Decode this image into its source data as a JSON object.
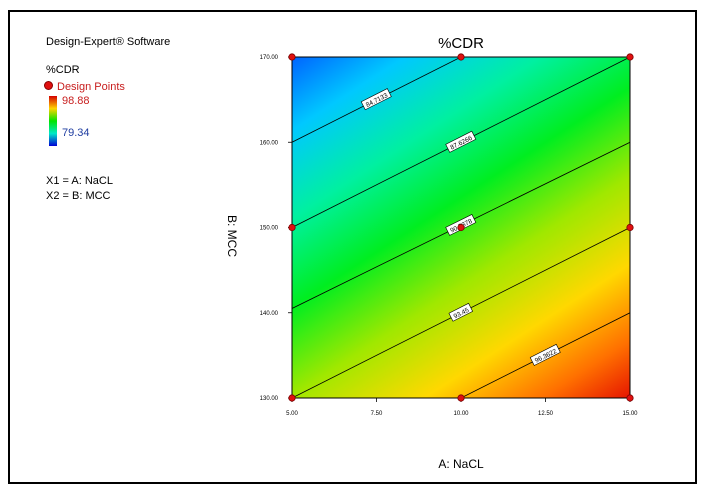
{
  "legend": {
    "software": "Design-Expert® Software",
    "response": "%CDR",
    "design_points_label": "Design Points",
    "high_value": "98.88",
    "low_value": "79.34",
    "factor1": "X1 = A: NaCL",
    "factor2": "X2 = B: MCC"
  },
  "colors": {
    "design_point": "#e01010",
    "high": "#d40000",
    "mid": "#00e400",
    "low": "#0000d4",
    "contour_line": "#000000"
  },
  "chart_data": {
    "type": "contour",
    "title": "%CDR",
    "xlabel": "A: NaCL",
    "ylabel": "B: MCC",
    "xlim": [
      5,
      15
    ],
    "ylim": [
      130,
      170
    ],
    "x_ticks": [
      "5.00",
      "7.50",
      "10.00",
      "12.50",
      "15.00"
    ],
    "y_ticks": [
      "130.00",
      "140.00",
      "150.00",
      "160.00",
      "170.00"
    ],
    "response_range": [
      79.34,
      98.88
    ],
    "contours": [
      {
        "label": "84.7133",
        "value": 84.7133,
        "points": [
          [
            5,
            160
          ],
          [
            10,
            170
          ]
        ]
      },
      {
        "label": "87.6266",
        "value": 87.6266,
        "points": [
          [
            5,
            150
          ],
          [
            15,
            170
          ]
        ]
      },
      {
        "label": "90.5378",
        "value": 90.5378,
        "points": [
          [
            5,
            140.5
          ],
          [
            15,
            160
          ]
        ]
      },
      {
        "label": "93.45",
        "value": 93.45,
        "points": [
          [
            5,
            130
          ],
          [
            15,
            150
          ]
        ]
      },
      {
        "label": "96.3622",
        "value": 96.3622,
        "points": [
          [
            10,
            130
          ],
          [
            15,
            140
          ]
        ]
      }
    ],
    "design_points": [
      [
        5,
        130
      ],
      [
        10,
        130
      ],
      [
        15,
        130
      ],
      [
        5,
        150
      ],
      [
        10,
        150
      ],
      [
        15,
        150
      ],
      [
        5,
        170
      ],
      [
        10,
        170
      ],
      [
        15,
        170
      ]
    ]
  }
}
